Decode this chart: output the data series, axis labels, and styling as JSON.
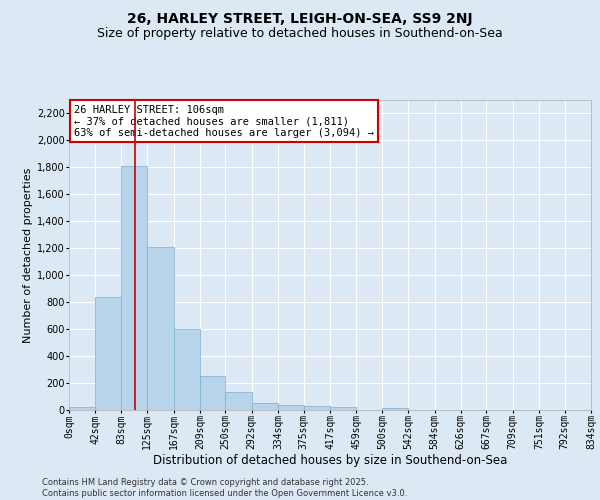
{
  "title": "26, HARLEY STREET, LEIGH-ON-SEA, SS9 2NJ",
  "subtitle": "Size of property relative to detached houses in Southend-on-Sea",
  "xlabel": "Distribution of detached houses by size in Southend-on-Sea",
  "ylabel": "Number of detached properties",
  "bar_color": "#b8d4ea",
  "bar_edge_color": "#7aaece",
  "background_color": "#dce9f5",
  "grid_color": "#ffffff",
  "bins": [
    0,
    42,
    83,
    125,
    167,
    209,
    250,
    292,
    334,
    375,
    417,
    459,
    500,
    542,
    584,
    626,
    667,
    709,
    751,
    792,
    834
  ],
  "values": [
    25,
    840,
    1811,
    1211,
    600,
    255,
    130,
    50,
    40,
    30,
    20,
    0,
    15,
    0,
    0,
    0,
    0,
    0,
    0,
    0
  ],
  "property_size": 106,
  "vline_color": "#cc0000",
  "annotation_box_color": "#cc0000",
  "annotation_line1": "26 HARLEY STREET: 106sqm",
  "annotation_line2": "← 37% of detached houses are smaller (1,811)",
  "annotation_line3": "63% of semi-detached houses are larger (3,094) →",
  "tick_labels": [
    "0sqm",
    "42sqm",
    "83sqm",
    "125sqm",
    "167sqm",
    "209sqm",
    "250sqm",
    "292sqm",
    "334sqm",
    "375sqm",
    "417sqm",
    "459sqm",
    "500sqm",
    "542sqm",
    "584sqm",
    "626sqm",
    "667sqm",
    "709sqm",
    "751sqm",
    "792sqm",
    "834sqm"
  ],
  "ylim": [
    0,
    2300
  ],
  "yticks": [
    0,
    200,
    400,
    600,
    800,
    1000,
    1200,
    1400,
    1600,
    1800,
    2000,
    2200
  ],
  "footer": "Contains HM Land Registry data © Crown copyright and database right 2025.\nContains public sector information licensed under the Open Government Licence v3.0.",
  "title_fontsize": 10,
  "subtitle_fontsize": 9,
  "xlabel_fontsize": 8.5,
  "ylabel_fontsize": 8,
  "tick_fontsize": 7,
  "annotation_fontsize": 7.5,
  "footer_fontsize": 6
}
